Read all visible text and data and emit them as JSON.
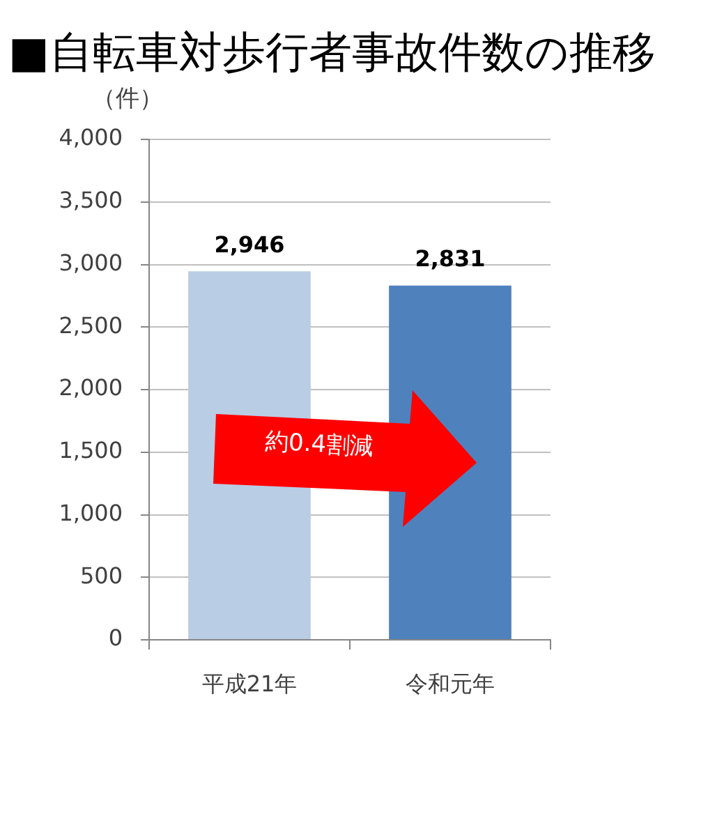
{
  "chart_data": {
    "type": "bar",
    "title": "■自転車対歩行者事故件数の推移",
    "ylabel": "（件）",
    "categories": [
      "平成21年",
      "令和元年"
    ],
    "values": [
      2946,
      2831
    ],
    "colors": [
      "#b9cde5",
      "#4f81bd"
    ],
    "value_labels": [
      "2,946",
      "2,831"
    ],
    "ylim": [
      0,
      4000
    ],
    "yticks": [
      0,
      500,
      {
        "value": 1000,
        "label": "1,000"
      },
      {
        "value": 1500,
        "label": "1,500"
      },
      {
        "value": 2000,
        "label": "2,000"
      },
      {
        "value": 2500,
        "label": "2,500"
      },
      {
        "value": 3000,
        "label": "3,000"
      },
      {
        "value": 3500,
        "label": "3,500"
      },
      {
        "value": 4000,
        "label": "4,000"
      }
    ],
    "grid": "y",
    "annotations": [
      "約0.4割減"
    ]
  }
}
